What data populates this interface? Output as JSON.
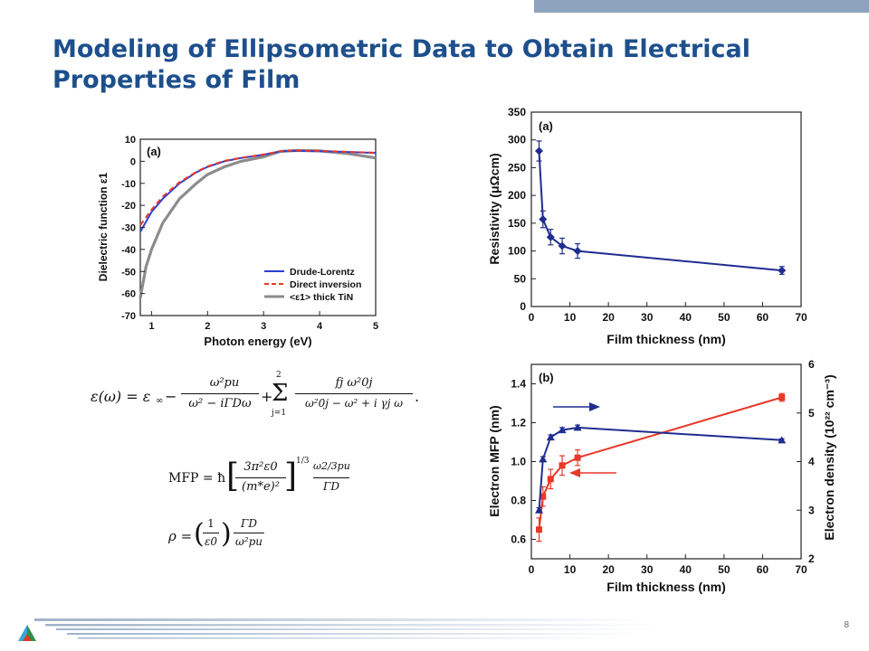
{
  "slide": {
    "title": "Modeling of Ellipsometric Data to Obtain Electrical Properties of Film",
    "page_number": "8",
    "colors": {
      "title": "#1d4f8c",
      "band": "#8ea3bd",
      "navy": "#1f2d8f",
      "red": "#e8392a",
      "gray": "#8c8c8c"
    }
  },
  "equations": {
    "eps_lhs": "ε(ω) = ε",
    "eps_inf_sub": "∞",
    "eps_num1": "ω²pu",
    "eps_den1": "ω² − iΓDω",
    "eps_sum_top": "2",
    "eps_sum_bot": "j=1",
    "eps_num2": "fj ω²0j",
    "eps_den2": "ω²0j − ω² + i γj ω",
    "mfp_lhs": "MFP = ħ",
    "mfp_bracket_num": "3π²ε0",
    "mfp_bracket_den": "(m*e)²",
    "mfp_exp": "1/3",
    "mfp_num": "ω2/3pu",
    "mfp_den": "ΓD",
    "rho_lhs": "ρ =",
    "rho_num1": "1",
    "rho_den1": "ε0",
    "rho_num2": "ΓD",
    "rho_den2": "ω²pu"
  },
  "chart_data": [
    {
      "type": "line",
      "panel": "(a)",
      "xlabel": "Photon energy (eV)",
      "ylabel": "Dielectric function ε1",
      "xlim": [
        0.8,
        5
      ],
      "ylim": [
        -70,
        10
      ],
      "xticks": [
        "1",
        "2",
        "3",
        "4",
        "5"
      ],
      "yticks": [
        "10",
        "0",
        "-10",
        "-20",
        "-30",
        "-40",
        "-50",
        "-60",
        "-70"
      ],
      "legend_position": "bottom-right",
      "series": [
        {
          "name": "Drude-Lorentz",
          "color": "#2a3fd0",
          "style": "solid",
          "x": [
            0.8,
            1.0,
            1.2,
            1.5,
            1.8,
            2.0,
            2.3,
            2.6,
            3.0,
            3.3,
            3.6,
            4.0,
            4.5,
            5.0
          ],
          "y": [
            -32,
            -23,
            -17,
            -10,
            -5,
            -2.5,
            0,
            1.5,
            3,
            4.5,
            4.8,
            4.6,
            4.2,
            3.8
          ]
        },
        {
          "name": "Direct inversion",
          "color": "#e8392a",
          "style": "dashed",
          "x": [
            0.8,
            1.0,
            1.2,
            1.5,
            1.8,
            2.0,
            2.3,
            2.6,
            3.0,
            3.3,
            3.6,
            4.0,
            4.5,
            5.0
          ],
          "y": [
            -29,
            -22,
            -16,
            -9.5,
            -4.8,
            -2.3,
            0.2,
            1.6,
            3.1,
            4.6,
            4.9,
            4.7,
            4.3,
            3.9
          ]
        },
        {
          "name": "<ε1> thick TiN",
          "color": "#8c8c8c",
          "style": "solid",
          "x": [
            0.8,
            0.9,
            1.0,
            1.2,
            1.5,
            1.8,
            2.0,
            2.3,
            2.6,
            3.0,
            3.3,
            3.6,
            4.0,
            4.5,
            5.0
          ],
          "y": [
            -62,
            -48,
            -40,
            -28,
            -17,
            -10,
            -6,
            -2.5,
            0,
            2,
            4.5,
            4.9,
            4.7,
            3.5,
            1.5
          ]
        }
      ]
    },
    {
      "type": "scatter",
      "panel": "(a)",
      "xlabel": "Film thickness (nm)",
      "ylabel": "Resistivity (μΩcm)",
      "xlim": [
        0,
        70
      ],
      "ylim": [
        0,
        350
      ],
      "xticks": [
        "0",
        "10",
        "20",
        "30",
        "40",
        "50",
        "60",
        "70"
      ],
      "yticks": [
        "0",
        "50",
        "100",
        "150",
        "200",
        "250",
        "300",
        "350"
      ],
      "color": "#1f2d8f",
      "x": [
        2,
        3,
        5,
        8,
        12,
        65
      ],
      "y": [
        280,
        157,
        125,
        109,
        100,
        65
      ],
      "err": [
        18,
        15,
        14,
        14,
        13,
        7
      ]
    },
    {
      "type": "scatter",
      "panel": "(b)",
      "xlabel": "Film thickness (nm)",
      "ylabel_left": "Electron MFP (nm)",
      "ylabel_right": "Electron density (10²² cm⁻³)",
      "xlim": [
        0,
        70
      ],
      "ylim_left": [
        0.5,
        1.5
      ],
      "ylim_right": [
        2,
        6
      ],
      "xticks": [
        "0",
        "10",
        "20",
        "30",
        "40",
        "50",
        "60",
        "70"
      ],
      "yticks_left": [
        "0.6",
        "0.8",
        "1.0",
        "1.2",
        "1.4"
      ],
      "yticks_right": [
        "2",
        "3",
        "4",
        "5",
        "6"
      ],
      "series": [
        {
          "axis": "left",
          "color": "#e8392a",
          "marker": "square",
          "x": [
            2,
            3,
            5,
            8,
            12,
            65
          ],
          "y": [
            0.65,
            0.82,
            0.91,
            0.98,
            1.02,
            1.33
          ],
          "err": [
            0.06,
            0.05,
            0.05,
            0.05,
            0.04,
            0.02
          ]
        },
        {
          "axis": "right",
          "color": "#1f2d8f",
          "marker": "triangle",
          "x": [
            2,
            3,
            5,
            8,
            12,
            65
          ],
          "y": [
            3.0,
            4.05,
            4.5,
            4.65,
            4.7,
            4.44
          ],
          "err": [
            0.05,
            0.05,
            0.05,
            0.05,
            0.05,
            0.03
          ]
        }
      ]
    }
  ]
}
